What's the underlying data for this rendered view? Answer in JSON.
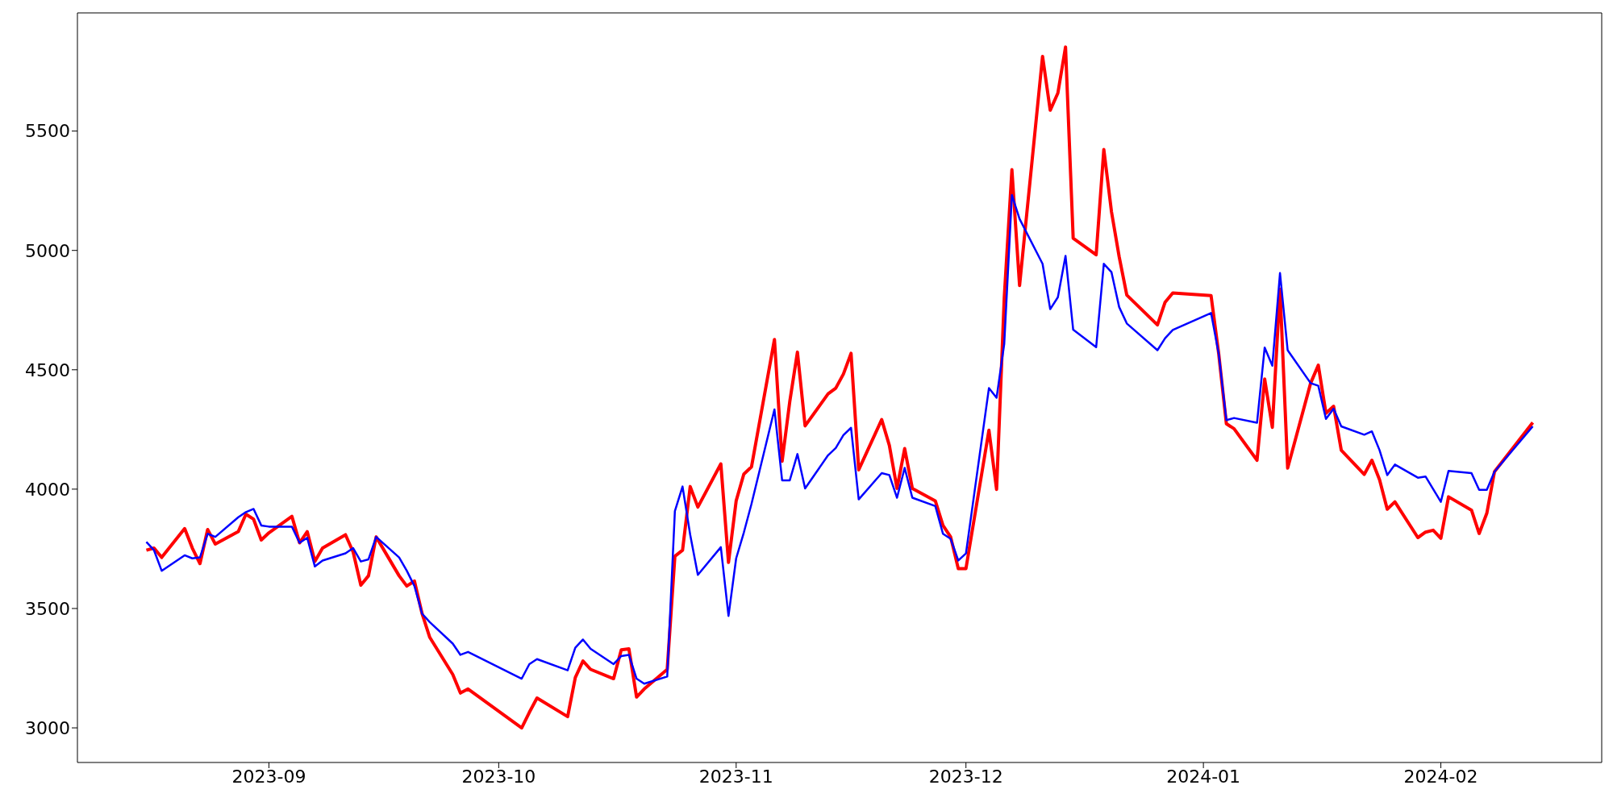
{
  "chart_data": {
    "type": "line",
    "x": [
      "2023-08-16",
      "2023-08-17",
      "2023-08-18",
      "2023-08-21",
      "2023-08-22",
      "2023-08-23",
      "2023-08-24",
      "2023-08-25",
      "2023-08-28",
      "2023-08-29",
      "2023-08-30",
      "2023-08-31",
      "2023-09-01",
      "2023-09-04",
      "2023-09-05",
      "2023-09-06",
      "2023-09-07",
      "2023-09-08",
      "2023-09-11",
      "2023-09-12",
      "2023-09-13",
      "2023-09-14",
      "2023-09-15",
      "2023-09-18",
      "2023-09-19",
      "2023-09-20",
      "2023-09-21",
      "2023-09-22",
      "2023-09-25",
      "2023-09-26",
      "2023-09-27",
      "2023-10-04",
      "2023-10-05",
      "2023-10-06",
      "2023-10-10",
      "2023-10-11",
      "2023-10-12",
      "2023-10-13",
      "2023-10-16",
      "2023-10-17",
      "2023-10-18",
      "2023-10-19",
      "2023-10-20",
      "2023-10-23",
      "2023-10-24",
      "2023-10-25",
      "2023-10-26",
      "2023-10-27",
      "2023-10-30",
      "2023-10-31",
      "2023-11-01",
      "2023-11-02",
      "2023-11-03",
      "2023-11-06",
      "2023-11-07",
      "2023-11-08",
      "2023-11-09",
      "2023-11-10",
      "2023-11-13",
      "2023-11-14",
      "2023-11-15",
      "2023-11-16",
      "2023-11-17",
      "2023-11-20",
      "2023-11-21",
      "2023-11-22",
      "2023-11-23",
      "2023-11-24",
      "2023-11-27",
      "2023-11-28",
      "2023-11-29",
      "2023-11-30",
      "2023-12-01",
      "2023-12-04",
      "2023-12-05",
      "2023-12-06",
      "2023-12-07",
      "2023-12-08",
      "2023-12-11",
      "2023-12-12",
      "2023-12-13",
      "2023-12-14",
      "2023-12-15",
      "2023-12-18",
      "2023-12-19",
      "2023-12-20",
      "2023-12-21",
      "2023-12-22",
      "2023-12-26",
      "2023-12-27",
      "2023-12-28",
      "2024-01-02",
      "2024-01-03",
      "2024-01-04",
      "2024-01-05",
      "2024-01-08",
      "2024-01-09",
      "2024-01-10",
      "2024-01-11",
      "2024-01-12",
      "2024-01-15",
      "2024-01-16",
      "2024-01-17",
      "2024-01-18",
      "2024-01-19",
      "2024-01-22",
      "2024-01-23",
      "2024-01-24",
      "2024-01-25",
      "2024-01-26",
      "2024-01-29",
      "2024-01-30",
      "2024-01-31",
      "2024-02-01",
      "2024-02-02",
      "2024-02-05",
      "2024-02-06",
      "2024-02-07",
      "2024-02-08",
      "2024-02-13"
    ],
    "series": [
      {
        "color": "#ff0000",
        "values": [
          3744,
          3753,
          3714,
          3835,
          3753,
          3688,
          3831,
          3770,
          3822,
          3895,
          3874,
          3787,
          3817,
          3886,
          3775,
          3822,
          3697,
          3753,
          3809,
          3736,
          3598,
          3637,
          3800,
          3637,
          3594,
          3615,
          3478,
          3379,
          3224,
          3146,
          3163,
          3000,
          3065,
          3125,
          3047,
          3211,
          3280,
          3245,
          3206,
          3327,
          3331,
          3129,
          3163,
          3245,
          3719,
          3744,
          4011,
          3925,
          4106,
          3693,
          3951,
          4063,
          4093,
          4627,
          4117,
          4367,
          4574,
          4265,
          4399,
          4423,
          4482,
          4569,
          4081,
          4291,
          4183,
          4003,
          4170,
          4003,
          3951,
          3848,
          3800,
          3667,
          3667,
          4247,
          3999,
          4801,
          5338,
          4853,
          5813,
          5587,
          5659,
          5852,
          5051,
          4982,
          5423,
          5162,
          4974,
          4813,
          4688,
          4783,
          4822,
          4811,
          4567,
          4274,
          4253,
          4121,
          4461,
          4259,
          4838,
          4088,
          4444,
          4519,
          4318,
          4347,
          4163,
          4062,
          4121,
          4039,
          3916,
          3947,
          3797,
          3820,
          3828,
          3794,
          3968,
          3912,
          3814,
          3899,
          4073,
          4279
        ]
      },
      {
        "color": "#0000ff",
        "values": [
          3779,
          3744,
          3658,
          3723,
          3710,
          3714,
          3813,
          3800,
          3882,
          3904,
          3917,
          3848,
          3843,
          3843,
          3775,
          3796,
          3676,
          3701,
          3731,
          3753,
          3697,
          3706,
          3800,
          3714,
          3658,
          3594,
          3478,
          3443,
          3353,
          3306,
          3318,
          3206,
          3267,
          3288,
          3241,
          3336,
          3370,
          3331,
          3267,
          3301,
          3306,
          3206,
          3185,
          3215,
          3908,
          4011,
          3809,
          3641,
          3757,
          3469,
          3710,
          3818,
          3938,
          4334,
          4037,
          4037,
          4147,
          4003,
          4142,
          4172,
          4226,
          4257,
          3957,
          4067,
          4059,
          3964,
          4089,
          3964,
          3929,
          3813,
          3792,
          3701,
          3731,
          4423,
          4383,
          4609,
          5232,
          5132,
          4944,
          4754,
          4804,
          4977,
          4668,
          4595,
          4944,
          4909,
          4763,
          4694,
          4582,
          4632,
          4667,
          4738,
          4567,
          4289,
          4298,
          4278,
          4593,
          4517,
          4905,
          4582,
          4444,
          4433,
          4294,
          4337,
          4263,
          4228,
          4242,
          4163,
          4059,
          4103,
          4048,
          4053,
          4000,
          3947,
          4076,
          4067,
          3997,
          3997,
          4073,
          4263
        ]
      }
    ],
    "xlim": [
      "2023-08-07",
      "2024-02-22"
    ],
    "xticks": [
      "2023-09",
      "2023-10",
      "2023-11",
      "2023-12",
      "2024-01",
      "2024-02"
    ],
    "ylim": [
      2855,
      5995
    ],
    "yticks": [
      3000,
      3500,
      4000,
      4500,
      5000,
      5500
    ]
  }
}
